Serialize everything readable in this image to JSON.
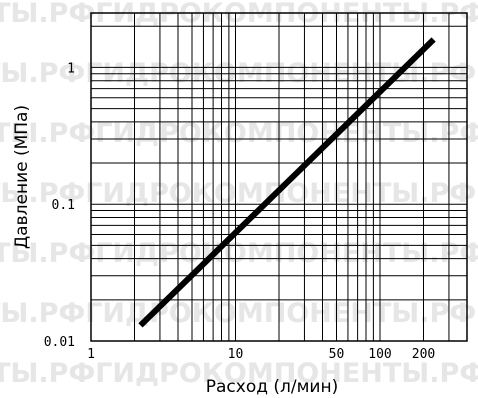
{
  "watermark": "ТЫ.РФГИДРОКОМПОНЕНТЫ.РФГИДРОКОМПОНЕНТЫ.РФГИДРО",
  "chart_data": {
    "type": "line",
    "title": "",
    "xlabel": "Расход (л/мин)",
    "ylabel": "Давление (МПа)",
    "xscale": "log",
    "yscale": "log",
    "xlim": [
      1,
      400
    ],
    "ylim": [
      0.01,
      2.5
    ],
    "grid": true,
    "x_ticks": [
      {
        "value": 1,
        "label": "1"
      },
      {
        "value": 10,
        "label": "10"
      },
      {
        "value": 50,
        "label": "50"
      },
      {
        "value": 100,
        "label": "100"
      },
      {
        "value": 200,
        "label": "200"
      }
    ],
    "y_ticks": [
      {
        "value": 0.01,
        "label": "0.01"
      },
      {
        "value": 0.1,
        "label": "0.1"
      },
      {
        "value": 1,
        "label": "1"
      }
    ],
    "series": [
      {
        "x": [
          2.2,
          235
        ],
        "y": [
          0.013,
          1.6
        ]
      }
    ],
    "line_color": "#000000"
  }
}
